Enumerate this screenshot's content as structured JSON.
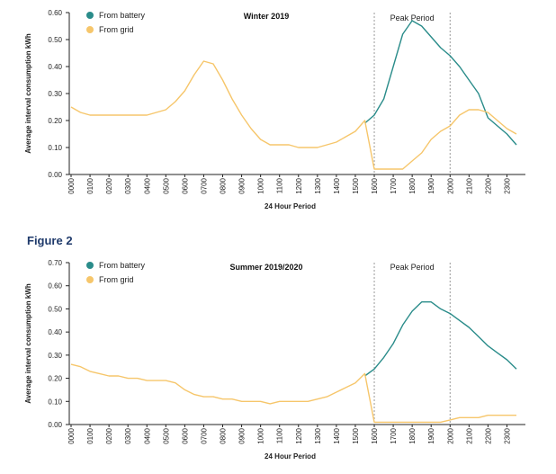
{
  "figure_heading": "Figure 2",
  "colors": {
    "battery": "#2a8c8a",
    "grid": "#f6c66b",
    "axis": "#222222",
    "peak_line": "#999999"
  },
  "chart_data": [
    {
      "type": "line",
      "title": "Winter 2019",
      "xlabel": "24 Hour Period",
      "ylabel": "Average interval consumption kWh",
      "ylim": [
        0,
        0.6
      ],
      "yticks": [
        "0.00",
        "0.10",
        "0.20",
        "0.30",
        "0.40",
        "0.50",
        "0.60"
      ],
      "ytick_values": [
        0,
        0.1,
        0.2,
        0.3,
        0.4,
        0.5,
        0.6
      ],
      "xlim": [
        0,
        23.5
      ],
      "xticks": [
        "0000",
        "0100",
        "0200",
        "0300",
        "0400",
        "0500",
        "0600",
        "0700",
        "0800",
        "0900",
        "1000",
        "1100",
        "1200",
        "1300",
        "1400",
        "1500",
        "1600",
        "1700",
        "1800",
        "1900",
        "2000",
        "2100",
        "2200",
        "2300"
      ],
      "annotation": "Peak Period",
      "peak_start": 16,
      "peak_end": 20,
      "legend_position": "top-left",
      "series": [
        {
          "name": "From battery",
          "color_key": "battery",
          "x": [
            15.5,
            16,
            16.5,
            17,
            17.5,
            18,
            18.5,
            19,
            19.5,
            20,
            20.5,
            21,
            21.5,
            22,
            22.5,
            23,
            23.5
          ],
          "y": [
            0.19,
            0.22,
            0.28,
            0.4,
            0.52,
            0.57,
            0.55,
            0.51,
            0.47,
            0.44,
            0.4,
            0.35,
            0.3,
            0.21,
            0.18,
            0.15,
            0.11
          ]
        },
        {
          "name": "From grid",
          "color_key": "grid",
          "x": [
            0,
            0.5,
            1,
            1.5,
            2,
            2.5,
            3,
            3.5,
            4,
            4.5,
            5,
            5.5,
            6,
            6.5,
            7,
            7.5,
            8,
            8.5,
            9,
            9.5,
            10,
            10.5,
            11,
            11.5,
            12,
            12.5,
            13,
            13.5,
            14,
            14.5,
            15,
            15.5,
            16,
            16.5,
            17,
            17.5,
            18,
            18.5,
            19,
            19.5,
            20,
            20.5,
            21,
            21.5,
            22,
            22.5,
            23,
            23.5
          ],
          "y": [
            0.25,
            0.23,
            0.22,
            0.22,
            0.22,
            0.22,
            0.22,
            0.22,
            0.22,
            0.23,
            0.24,
            0.27,
            0.31,
            0.37,
            0.42,
            0.41,
            0.35,
            0.28,
            0.22,
            0.17,
            0.13,
            0.11,
            0.11,
            0.11,
            0.1,
            0.1,
            0.1,
            0.11,
            0.12,
            0.14,
            0.16,
            0.2,
            0.02,
            0.02,
            0.02,
            0.02,
            0.05,
            0.08,
            0.13,
            0.16,
            0.18,
            0.22,
            0.24,
            0.24,
            0.23,
            0.2,
            0.17,
            0.15
          ]
        }
      ]
    },
    {
      "type": "line",
      "title": "Summer 2019/2020",
      "xlabel": "24 Hour Period",
      "ylabel": "Average interval consumption kWh",
      "ylim": [
        0,
        0.7
      ],
      "yticks": [
        "0.00",
        "0.10",
        "0.20",
        "0.30",
        "0.40",
        "0.50",
        "0.60",
        "0.70"
      ],
      "ytick_values": [
        0,
        0.1,
        0.2,
        0.3,
        0.4,
        0.5,
        0.6,
        0.7
      ],
      "xlim": [
        0,
        23.5
      ],
      "xticks": [
        "0000",
        "0100",
        "0200",
        "0300",
        "0400",
        "0500",
        "0600",
        "0700",
        "0800",
        "0900",
        "1000",
        "1100",
        "1200",
        "1300",
        "1400",
        "1500",
        "1600",
        "1700",
        "1800",
        "1900",
        "2000",
        "2100",
        "2200",
        "2300"
      ],
      "annotation": "Peak Period",
      "peak_start": 16,
      "peak_end": 20,
      "legend_position": "top-left",
      "series": [
        {
          "name": "From battery",
          "color_key": "battery",
          "x": [
            15.5,
            16,
            16.5,
            17,
            17.5,
            18,
            18.5,
            19,
            19.5,
            20,
            20.5,
            21,
            21.5,
            22,
            22.5,
            23,
            23.5
          ],
          "y": [
            0.21,
            0.24,
            0.29,
            0.35,
            0.43,
            0.49,
            0.53,
            0.53,
            0.5,
            0.48,
            0.45,
            0.42,
            0.38,
            0.34,
            0.31,
            0.28,
            0.24
          ]
        },
        {
          "name": "From grid",
          "color_key": "grid",
          "x": [
            0,
            0.5,
            1,
            1.5,
            2,
            2.5,
            3,
            3.5,
            4,
            4.5,
            5,
            5.5,
            6,
            6.5,
            7,
            7.5,
            8,
            8.5,
            9,
            9.5,
            10,
            10.5,
            11,
            11.5,
            12,
            12.5,
            13,
            13.5,
            14,
            14.5,
            15,
            15.5,
            16,
            16.5,
            17,
            17.5,
            18,
            18.5,
            19,
            19.5,
            20,
            20.5,
            21,
            21.5,
            22,
            22.5,
            23,
            23.5
          ],
          "y": [
            0.26,
            0.25,
            0.23,
            0.22,
            0.21,
            0.21,
            0.2,
            0.2,
            0.19,
            0.19,
            0.19,
            0.18,
            0.15,
            0.13,
            0.12,
            0.12,
            0.11,
            0.11,
            0.1,
            0.1,
            0.1,
            0.09,
            0.1,
            0.1,
            0.1,
            0.1,
            0.11,
            0.12,
            0.14,
            0.16,
            0.18,
            0.22,
            0.01,
            0.01,
            0.01,
            0.01,
            0.01,
            0.01,
            0.01,
            0.01,
            0.02,
            0.03,
            0.03,
            0.03,
            0.04,
            0.04,
            0.04,
            0.04
          ]
        }
      ]
    }
  ]
}
